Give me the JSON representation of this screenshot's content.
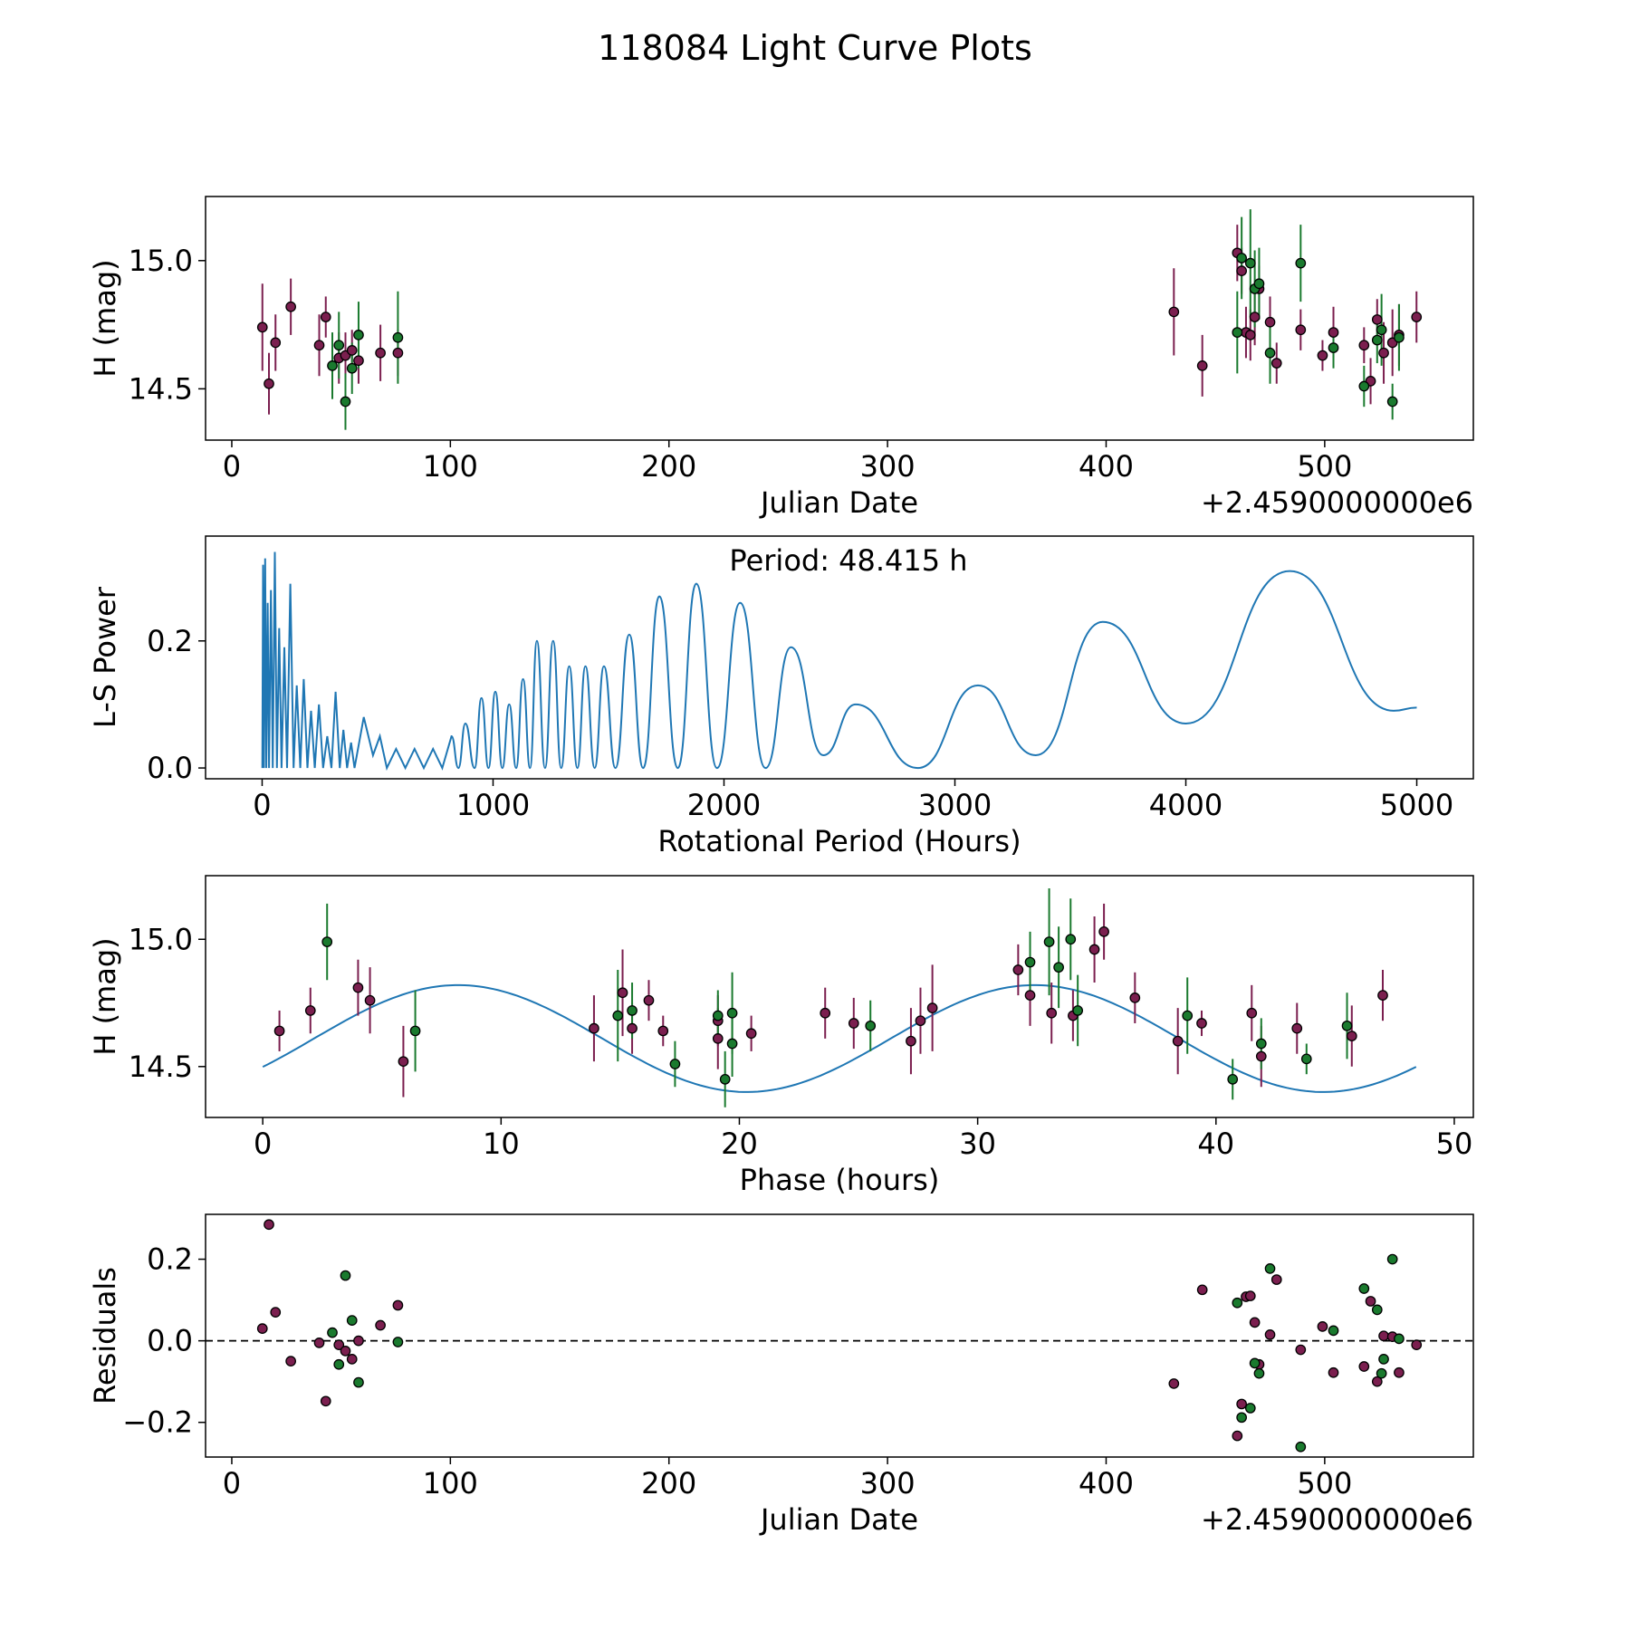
{
  "title": "118084 Light Curve Plots",
  "colors": {
    "magenta": "#7b1f4f",
    "green": "#1a7a2e",
    "curve": "#1f77b4",
    "marker_edge": "#000000",
    "dashed": "#000000"
  },
  "chart_data": [
    {
      "id": "lightcurve",
      "type": "scatter",
      "xlabel": "Julian Date",
      "ylabel": "H (mag)",
      "offset_text": "+2.4590000000e6",
      "xlim": [
        -12,
        568
      ],
      "ylim": [
        14.3,
        15.25
      ],
      "xticks": [
        0,
        100,
        200,
        300,
        400,
        500
      ],
      "yticks": [
        14.5,
        15.0
      ],
      "series": [
        {
          "name": "magenta",
          "color": "magenta",
          "points": [
            [
              14,
              14.74,
              0.17
            ],
            [
              17,
              14.52,
              0.12
            ],
            [
              20,
              14.68,
              0.11
            ],
            [
              27,
              14.82,
              0.11
            ],
            [
              40,
              14.67,
              0.12
            ],
            [
              43,
              14.78,
              0.08
            ],
            [
              49,
              14.62,
              0.1
            ],
            [
              52,
              14.63,
              0.09
            ],
            [
              55,
              14.65,
              0.08
            ],
            [
              58,
              14.61,
              0.09
            ],
            [
              68,
              14.64,
              0.11
            ],
            [
              76,
              14.64,
              0.09
            ],
            [
              431,
              14.8,
              0.17
            ],
            [
              444,
              14.59,
              0.12
            ],
            [
              460,
              15.03,
              0.11
            ],
            [
              462,
              14.96,
              0.09
            ],
            [
              464,
              14.72,
              0.1
            ],
            [
              466,
              14.71,
              0.1
            ],
            [
              468,
              14.78,
              0.11
            ],
            [
              470,
              14.89,
              0.09
            ],
            [
              475,
              14.76,
              0.1
            ],
            [
              478,
              14.6,
              0.08
            ],
            [
              489,
              14.73,
              0.08
            ],
            [
              499,
              14.63,
              0.06
            ],
            [
              504,
              14.72,
              0.1
            ],
            [
              518,
              14.67,
              0.07
            ],
            [
              521,
              14.53,
              0.09
            ],
            [
              524,
              14.77,
              0.08
            ],
            [
              527,
              14.64,
              0.12
            ],
            [
              531,
              14.68,
              0.13
            ],
            [
              534,
              14.71,
              0.12
            ],
            [
              542,
              14.78,
              0.1
            ]
          ]
        },
        {
          "name": "green",
          "color": "green",
          "points": [
            [
              46,
              14.59,
              0.13
            ],
            [
              49,
              14.67,
              0.13
            ],
            [
              52,
              14.45,
              0.11
            ],
            [
              55,
              14.58,
              0.1
            ],
            [
              58,
              14.71,
              0.13
            ],
            [
              76,
              14.7,
              0.18
            ],
            [
              460,
              14.72,
              0.16
            ],
            [
              462,
              15.01,
              0.16
            ],
            [
              466,
              14.99,
              0.21
            ],
            [
              468,
              14.89,
              0.15
            ],
            [
              470,
              14.91,
              0.14
            ],
            [
              475,
              14.64,
              0.12
            ],
            [
              489,
              14.99,
              0.15
            ],
            [
              504,
              14.66,
              0.08
            ],
            [
              518,
              14.51,
              0.08
            ],
            [
              524,
              14.69,
              0.09
            ],
            [
              526,
              14.73,
              0.14
            ],
            [
              531,
              14.45,
              0.07
            ],
            [
              534,
              14.7,
              0.13
            ]
          ]
        }
      ]
    },
    {
      "id": "periodogram",
      "type": "line",
      "xlabel": "Rotational Period (Hours)",
      "ylabel": "L-S Power",
      "annotation": "Period: 48.415 h",
      "xlim": [
        -245,
        5245
      ],
      "ylim": [
        -0.017,
        0.365
      ],
      "xticks": [
        0,
        1000,
        2000,
        3000,
        4000,
        5000
      ],
      "yticks": [
        0.0,
        0.2
      ],
      "ytick_labels": [
        "0.0",
        "0.2"
      ],
      "peaks": [
        [
          1,
          0.0
        ],
        [
          4,
          0.32
        ],
        [
          8,
          0.0
        ],
        [
          13,
          0.33
        ],
        [
          18,
          0.0
        ],
        [
          24,
          0.26
        ],
        [
          30,
          0.0
        ],
        [
          38,
          0.28
        ],
        [
          46,
          0.0
        ],
        [
          55,
          0.34
        ],
        [
          64,
          0.0
        ],
        [
          74,
          0.22
        ],
        [
          84,
          0.0
        ],
        [
          96,
          0.19
        ],
        [
          108,
          0.0
        ],
        [
          122,
          0.29
        ],
        [
          136,
          0.0
        ],
        [
          150,
          0.13
        ],
        [
          165,
          0.0
        ],
        [
          180,
          0.14
        ],
        [
          196,
          0.0
        ],
        [
          212,
          0.09
        ],
        [
          228,
          0.0
        ],
        [
          246,
          0.1
        ],
        [
          264,
          0.0
        ],
        [
          282,
          0.05
        ],
        [
          300,
          0.0
        ],
        [
          318,
          0.12
        ],
        [
          336,
          0.0
        ],
        [
          352,
          0.06
        ],
        [
          368,
          0.0
        ],
        [
          385,
          0.04
        ],
        [
          400,
          0.0
        ],
        [
          440,
          0.08
        ],
        [
          480,
          0.02
        ],
        [
          510,
          0.05
        ],
        [
          540,
          0.0
        ],
        [
          580,
          0.03
        ],
        [
          620,
          0.0
        ],
        [
          660,
          0.03
        ],
        [
          700,
          0.0
        ],
        [
          740,
          0.03
        ],
        [
          780,
          0.0
        ],
        [
          820,
          0.05
        ]
      ],
      "smooth_peaks": [
        [
          880,
          0.07
        ],
        [
          950,
          0.11
        ],
        [
          1010,
          0.12
        ],
        [
          1070,
          0.1
        ],
        [
          1130,
          0.14
        ],
        [
          1190,
          0.2
        ],
        [
          1260,
          0.2
        ],
        [
          1330,
          0.16
        ],
        [
          1400,
          0.16
        ],
        [
          1480,
          0.16
        ],
        [
          1590,
          0.21
        ],
        [
          1720,
          0.27
        ],
        [
          1880,
          0.29
        ],
        [
          2070,
          0.26
        ],
        [
          2290,
          0.19
        ],
        [
          2570,
          0.1
        ],
        [
          3100,
          0.13
        ],
        [
          3640,
          0.23
        ],
        [
          4450,
          0.31
        ]
      ],
      "smooth_troughs": [
        [
          850,
          0.0
        ],
        [
          920,
          0.0
        ],
        [
          980,
          0.0
        ],
        [
          1040,
          0.0
        ],
        [
          1100,
          0.0
        ],
        [
          1160,
          0.0
        ],
        [
          1225,
          0.0
        ],
        [
          1295,
          0.0
        ],
        [
          1365,
          0.0
        ],
        [
          1440,
          0.0
        ],
        [
          1530,
          0.0
        ],
        [
          1650,
          0.0
        ],
        [
          1800,
          0.0
        ],
        [
          1970,
          0.0
        ],
        [
          2180,
          0.0
        ],
        [
          2430,
          0.02
        ],
        [
          2840,
          0.0
        ],
        [
          3350,
          0.02
        ],
        [
          4000,
          0.07
        ],
        [
          4900,
          0.09
        ]
      ],
      "end_point": [
        5000,
        0.095
      ]
    },
    {
      "id": "phased",
      "type": "scatter",
      "xlabel": "Phase (hours)",
      "ylabel": "H (mag)",
      "xlim": [
        -2.4,
        50.8
      ],
      "ylim": [
        14.3,
        15.25
      ],
      "xticks": [
        0,
        10,
        20,
        30,
        40,
        50
      ],
      "yticks": [
        14.5,
        15.0
      ],
      "model": {
        "mean": 14.61,
        "amplitude": 0.21,
        "period": 24.2,
        "phase0": 2.15,
        "x_end": 48.4
      },
      "series": [
        {
          "name": "magenta",
          "color": "magenta",
          "points": [
            [
              0.7,
              14.64,
              0.08
            ],
            [
              2.0,
              14.72,
              0.09
            ],
            [
              4.0,
              14.81,
              0.11
            ],
            [
              4.5,
              14.76,
              0.13
            ],
            [
              5.9,
              14.52,
              0.14
            ],
            [
              13.9,
              14.65,
              0.13
            ],
            [
              15.1,
              14.79,
              0.17
            ],
            [
              15.5,
              14.65,
              0.1
            ],
            [
              16.2,
              14.76,
              0.08
            ],
            [
              16.8,
              14.64,
              0.06
            ],
            [
              19.1,
              14.68,
              0.1
            ],
            [
              19.1,
              14.61,
              0.12
            ],
            [
              20.5,
              14.63,
              0.07
            ],
            [
              23.6,
              14.71,
              0.1
            ],
            [
              24.8,
              14.67,
              0.1
            ],
            [
              27.2,
              14.6,
              0.13
            ],
            [
              27.6,
              14.68,
              0.13
            ],
            [
              28.1,
              14.73,
              0.17
            ],
            [
              31.7,
              14.88,
              0.1
            ],
            [
              32.2,
              14.78,
              0.12
            ],
            [
              33.1,
              14.71,
              0.12
            ],
            [
              34.0,
              14.7,
              0.1
            ],
            [
              34.9,
              14.96,
              0.13
            ],
            [
              35.3,
              15.03,
              0.11
            ],
            [
              36.6,
              14.77,
              0.1
            ],
            [
              38.4,
              14.6,
              0.13
            ],
            [
              39.4,
              14.67,
              0.05
            ],
            [
              41.5,
              14.71,
              0.11
            ],
            [
              41.9,
              14.54,
              0.12
            ],
            [
              43.4,
              14.65,
              0.1
            ],
            [
              45.7,
              14.62,
              0.12
            ],
            [
              47.0,
              14.78,
              0.1
            ]
          ]
        },
        {
          "name": "green",
          "color": "green",
          "points": [
            [
              2.7,
              14.99,
              0.15
            ],
            [
              6.4,
              14.64,
              0.16
            ],
            [
              14.9,
              14.7,
              0.18
            ],
            [
              15.5,
              14.72,
              0.11
            ],
            [
              17.3,
              14.51,
              0.09
            ],
            [
              19.1,
              14.7,
              0.1
            ],
            [
              19.4,
              14.45,
              0.11
            ],
            [
              19.7,
              14.71,
              0.16
            ],
            [
              19.7,
              14.59,
              0.13
            ],
            [
              25.5,
              14.66,
              0.1
            ],
            [
              32.2,
              14.91,
              0.12
            ],
            [
              33.0,
              14.99,
              0.21
            ],
            [
              33.4,
              14.89,
              0.16
            ],
            [
              33.9,
              15.0,
              0.16
            ],
            [
              34.2,
              14.72,
              0.14
            ],
            [
              38.8,
              14.7,
              0.15
            ],
            [
              40.7,
              14.45,
              0.08
            ],
            [
              41.9,
              14.59,
              0.1
            ],
            [
              43.8,
              14.53,
              0.06
            ],
            [
              45.5,
              14.66,
              0.13
            ]
          ]
        }
      ]
    },
    {
      "id": "residuals",
      "type": "scatter",
      "xlabel": "Julian Date",
      "ylabel": "Residuals",
      "offset_text": "+2.4590000000e6",
      "xlim": [
        -12,
        568
      ],
      "ylim": [
        -0.285,
        0.31
      ],
      "xticks": [
        0,
        100,
        200,
        300,
        400,
        500
      ],
      "yticks": [
        -0.2,
        0.0,
        0.2
      ],
      "ytick_labels": [
        "−0.2",
        "0.0",
        "0.2"
      ],
      "zero_line": 0.0,
      "series": [
        {
          "name": "magenta",
          "color": "magenta",
          "points": [
            [
              14,
              0.03
            ],
            [
              17,
              0.285
            ],
            [
              20,
              0.07
            ],
            [
              27,
              -0.05
            ],
            [
              40,
              -0.005
            ],
            [
              43,
              -0.148
            ],
            [
              49,
              -0.01
            ],
            [
              52,
              -0.025
            ],
            [
              55,
              -0.045
            ],
            [
              58,
              0.0
            ],
            [
              68,
              0.038
            ],
            [
              76,
              0.087
            ],
            [
              431,
              -0.105
            ],
            [
              444,
              0.125
            ],
            [
              460,
              -0.233
            ],
            [
              462,
              -0.155
            ],
            [
              464,
              0.108
            ],
            [
              466,
              0.11
            ],
            [
              468,
              0.045
            ],
            [
              470,
              -0.058
            ],
            [
              475,
              0.015
            ],
            [
              478,
              0.15
            ],
            [
              489,
              -0.022
            ],
            [
              499,
              0.035
            ],
            [
              504,
              -0.078
            ],
            [
              518,
              -0.063
            ],
            [
              521,
              0.097
            ],
            [
              524,
              -0.1
            ],
            [
              527,
              0.012
            ],
            [
              531,
              0.01
            ],
            [
              534,
              -0.078
            ],
            [
              542,
              -0.01
            ]
          ]
        },
        {
          "name": "green",
          "color": "green",
          "points": [
            [
              46,
              0.02
            ],
            [
              49,
              -0.058
            ],
            [
              52,
              0.16
            ],
            [
              55,
              0.05
            ],
            [
              58,
              -0.102
            ],
            [
              76,
              -0.003
            ],
            [
              460,
              0.093
            ],
            [
              462,
              -0.188
            ],
            [
              466,
              -0.165
            ],
            [
              468,
              -0.055
            ],
            [
              470,
              -0.08
            ],
            [
              475,
              0.177
            ],
            [
              489,
              -0.26
            ],
            [
              504,
              0.025
            ],
            [
              518,
              0.128
            ],
            [
              524,
              0.076
            ],
            [
              526,
              -0.08
            ],
            [
              527,
              -0.045
            ],
            [
              531,
              0.2
            ],
            [
              534,
              0.005
            ]
          ]
        }
      ]
    }
  ]
}
